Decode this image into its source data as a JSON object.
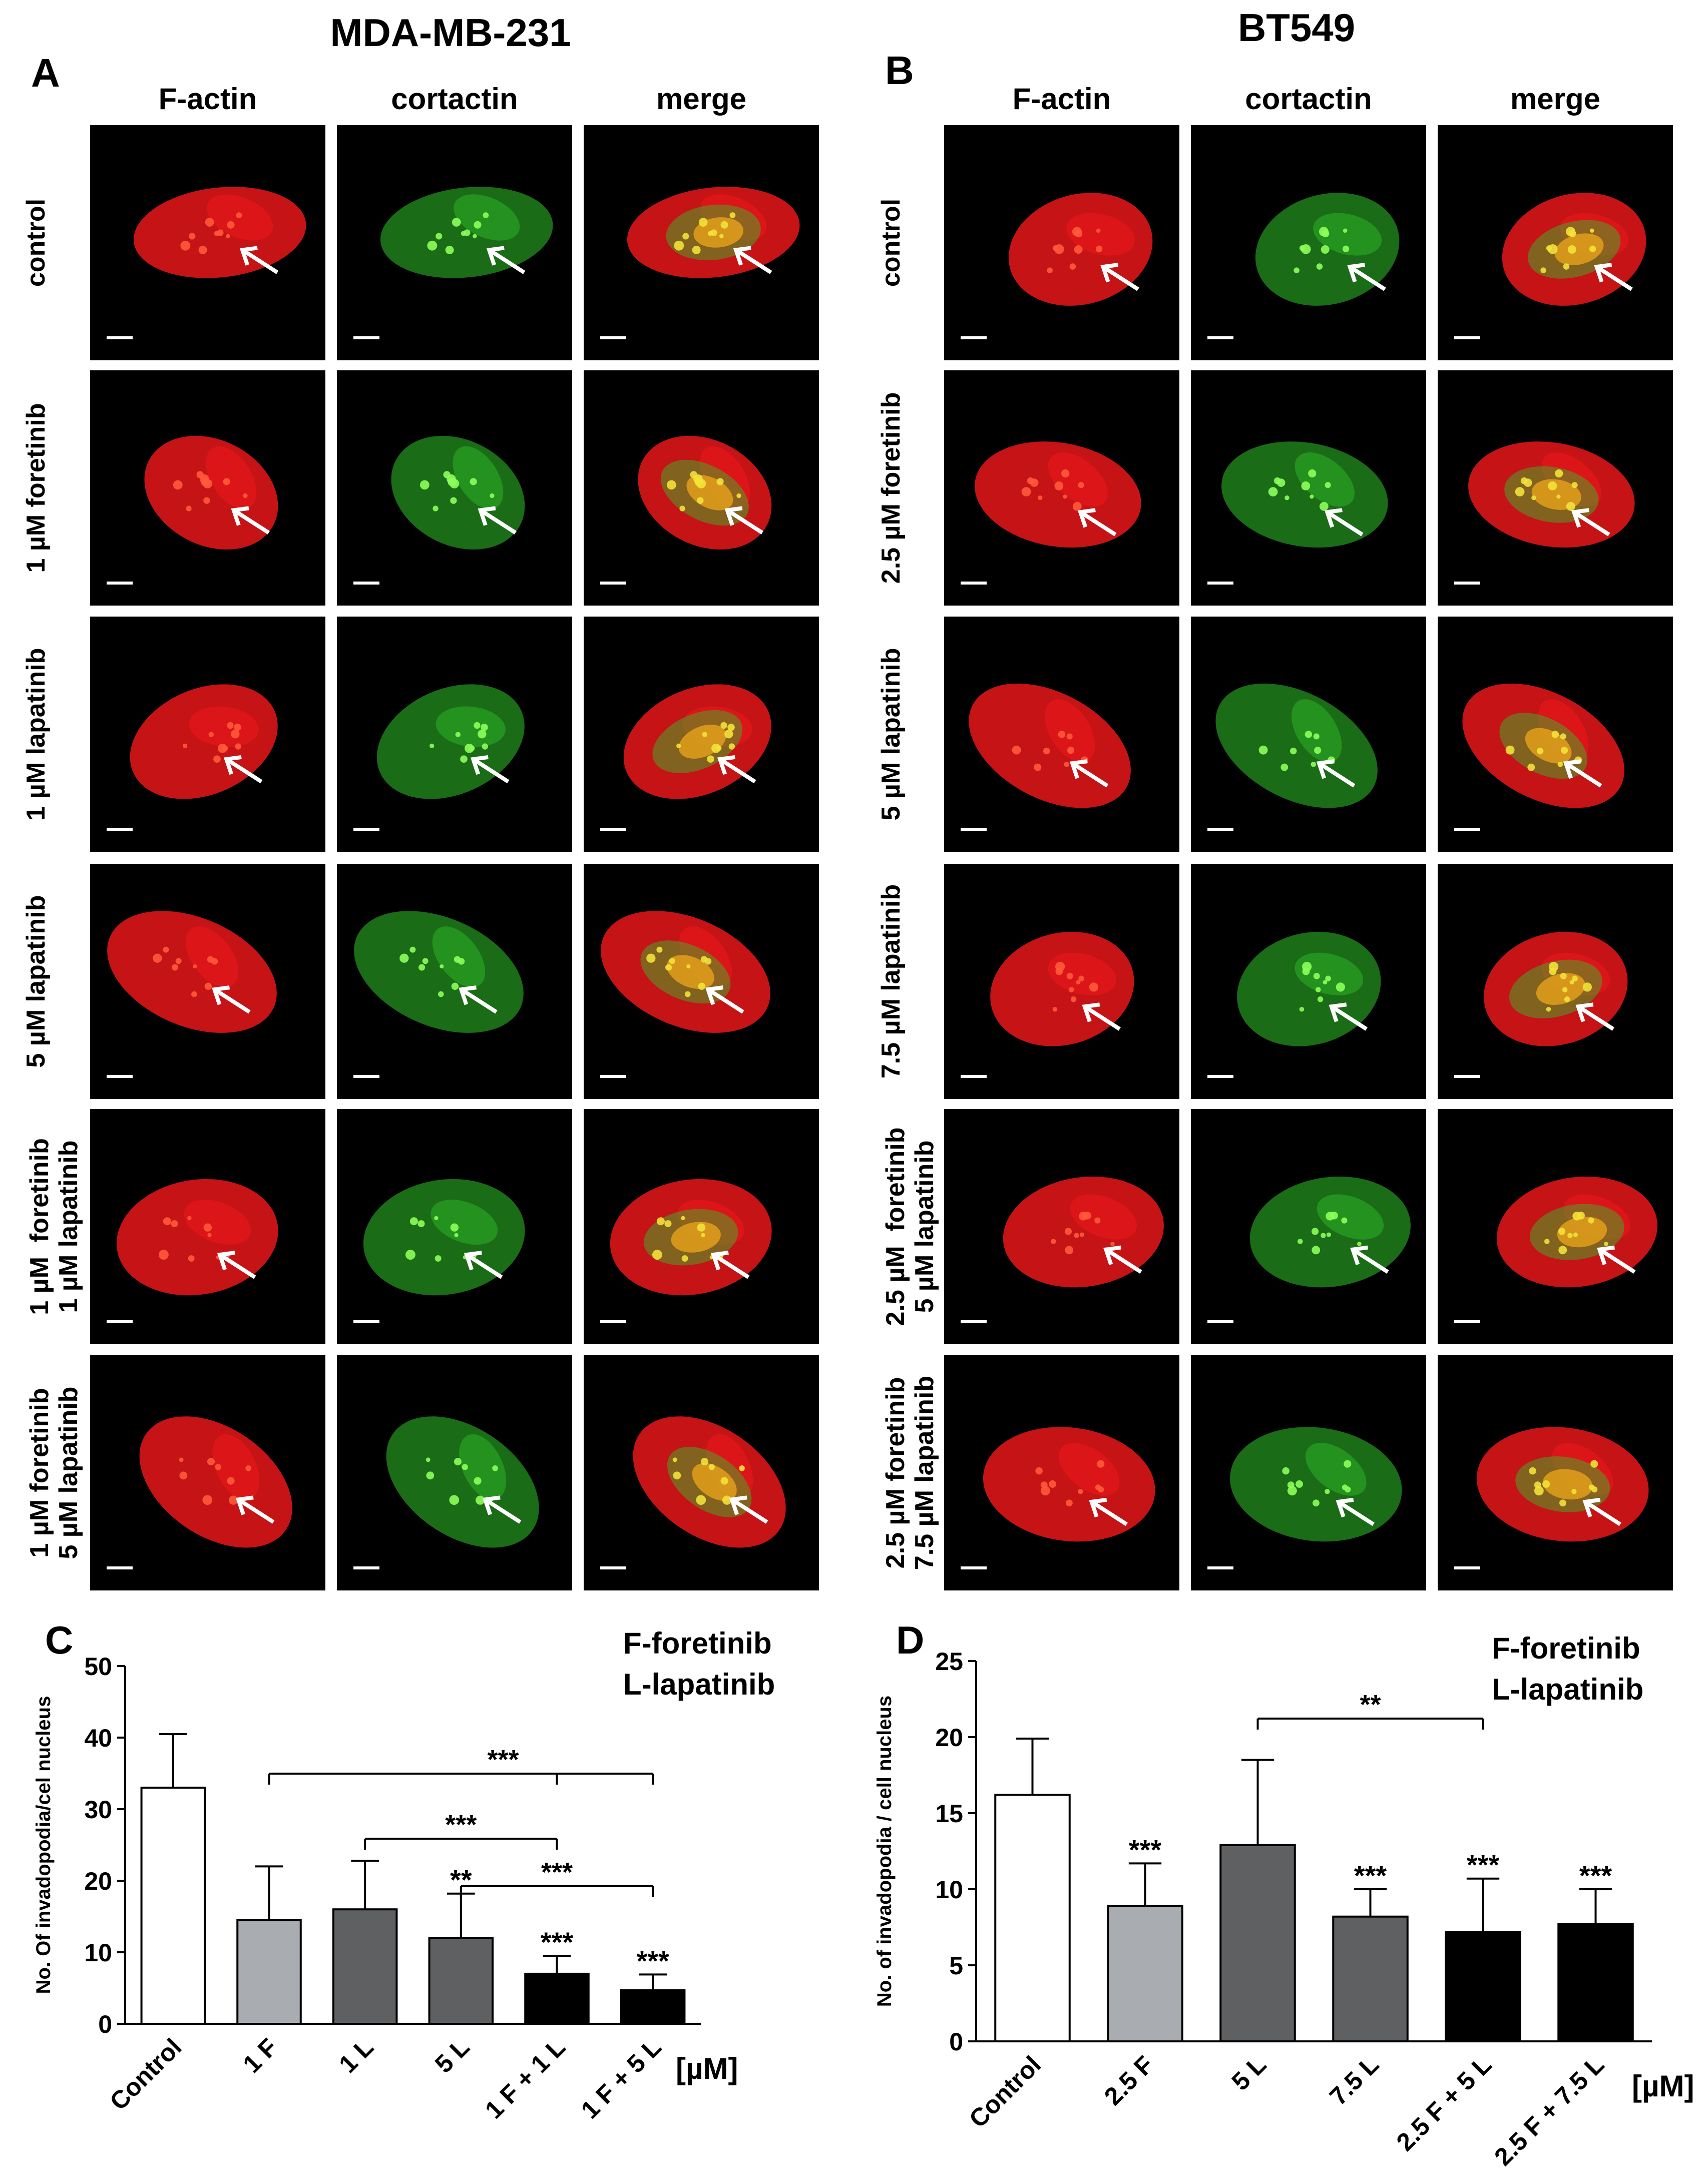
{
  "panelA": {
    "title": "MDA-MB-231",
    "letter": "A",
    "columns": [
      "F-actin",
      "cortactin",
      "merge"
    ],
    "rows": [
      "control",
      "1 µM foretinib",
      "1 µM lapatinib",
      "5 µM lapatinib",
      "1 µM  foretinib\n1 µM lapatinib",
      "1 µM foretinib\n5 µM lapatinib"
    ]
  },
  "panelB": {
    "title": "BT549",
    "letter": "B",
    "columns": [
      "F-actin",
      "cortactin",
      "merge"
    ],
    "rows": [
      "control",
      "2.5 µM foretinib",
      "5 µM lapatinib",
      "7.5 µM lapatinib",
      "2.5 µM  foretinib\n5 µM lapatinib",
      "2.5 µM foretinib\n7.5 µM lapatinib"
    ]
  },
  "colors": {
    "actin": "#e8161a",
    "cortactin": "#2fc42a",
    "merge": "#e8a21a",
    "bar_black": "#000000",
    "bar_gray_light": "#a9acb0",
    "bar_gray_dark": "#5f6062"
  },
  "chart_data": [
    {
      "type": "bar",
      "letter": "C",
      "legend": [
        "F-foretinib",
        "L-lapatinib"
      ],
      "ylabel": "No. Of invadopodia/cel nucleus",
      "unit": "[µM]",
      "ylim": [
        0,
        50
      ],
      "yticks": [
        0,
        10,
        20,
        30,
        40,
        50
      ],
      "categories": [
        "Control",
        "1 F",
        "1 L",
        "5 L",
        "1 F + 1 L",
        "1 F + 5 L"
      ],
      "values": [
        33,
        14.5,
        16,
        12,
        7,
        4.7
      ],
      "errors": [
        7.5,
        7.5,
        6.8,
        6.2,
        2.5,
        2.2
      ],
      "fills": [
        "#ffffff",
        "#a9acb0",
        "#5f6062",
        "#5f6062",
        "#000000",
        "#000000"
      ],
      "stars": [
        "",
        "",
        "",
        "**",
        "***",
        "***"
      ],
      "comparisons": [
        {
          "from": 1,
          "to": 5,
          "mid": 4,
          "label": "***"
        },
        {
          "from": 2,
          "to": 4,
          "label": "***"
        },
        {
          "from": 3,
          "to": 5,
          "label": "***"
        }
      ]
    },
    {
      "type": "bar",
      "letter": "D",
      "legend": [
        "F-foretinib",
        "L-lapatinib"
      ],
      "ylabel": "No. of invadopodia / cell nucleus",
      "unit": "[µM]",
      "ylim": [
        0,
        25
      ],
      "yticks": [
        0,
        5,
        10,
        15,
        20,
        25
      ],
      "categories": [
        "Control",
        "2.5 F",
        "5 L",
        "7.5 L",
        "2.5 F + 5 L",
        "2.5 F + 7.5 L"
      ],
      "values": [
        16.2,
        8.9,
        12.9,
        8.2,
        7.2,
        7.7
      ],
      "errors": [
        3.7,
        2.8,
        5.6,
        1.8,
        3.5,
        2.3
      ],
      "fills": [
        "#ffffff",
        "#a9acb0",
        "#5f6062",
        "#5f6062",
        "#000000",
        "#000000"
      ],
      "stars": [
        "",
        "***",
        "",
        "***",
        "***",
        "***"
      ],
      "comparisons": [
        {
          "from": 2,
          "to": 4,
          "label": "**"
        }
      ]
    }
  ]
}
